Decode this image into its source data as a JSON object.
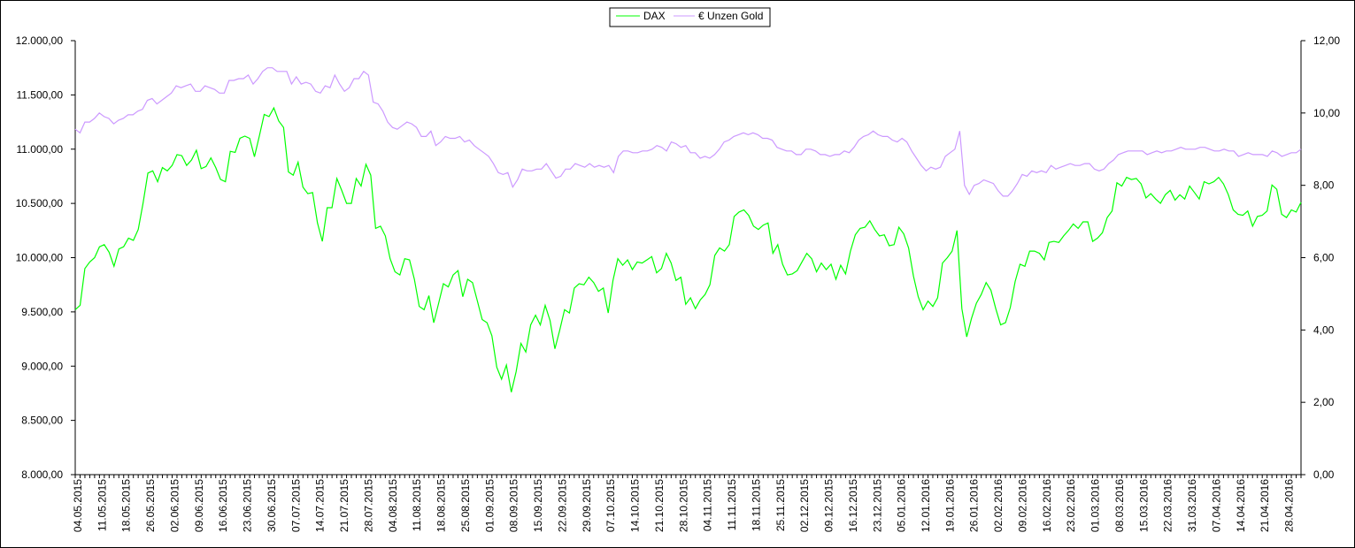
{
  "chart_data": {
    "type": "line",
    "title": "",
    "legend_position": "top-center",
    "grid": false,
    "x_tick_labels": [
      "04.05.2015",
      "11.05.2015",
      "18.05.2015",
      "26.05.2015",
      "02.06.2015",
      "09.06.2015",
      "16.06.2015",
      "23.06.2015",
      "30.06.2015",
      "07.07.2015",
      "14.07.2015",
      "21.07.2015",
      "28.07.2015",
      "04.08.2015",
      "11.08.2015",
      "18.08.2015",
      "25.08.2015",
      "01.09.2015",
      "08.09.2015",
      "15.09.2015",
      "22.09.2015",
      "29.09.2015",
      "07.10.2015",
      "14.10.2015",
      "21.10.2015",
      "28.10.2015",
      "04.11.2015",
      "11.11.2015",
      "18.11.2015",
      "25.11.2015",
      "02.12.2015",
      "09.12.2015",
      "16.12.2015",
      "23.12.2015",
      "05.01.2016",
      "12.01.2016",
      "19.01.2016",
      "26.01.2016",
      "02.02.2016",
      "09.02.2016",
      "16.02.2016",
      "23.02.2016",
      "01.03.2016",
      "08.03.2016",
      "15.03.2016",
      "22.03.2016",
      "31.03.2016",
      "07.04.2016",
      "14.04.2016",
      "21.04.2016",
      "28.04.2016"
    ],
    "y_left": {
      "ylim": [
        8000,
        12000
      ],
      "ticks": [
        "8.000,00",
        "8.500,00",
        "9.000,00",
        "9.500,00",
        "10.000,00",
        "10.500,00",
        "11.000,00",
        "11.500,00",
        "12.000,00"
      ]
    },
    "y_right": {
      "ylim": [
        0,
        12
      ],
      "ticks": [
        "0,00",
        "2,00",
        "4,00",
        "6,00",
        "8,00",
        "10,00",
        "12,00"
      ]
    },
    "series": [
      {
        "name": "DAX",
        "axis": "left",
        "color": "#00ff00",
        "values": [
          9520,
          9560,
          9900,
          9960,
          10000,
          10100,
          10120,
          10050,
          9920,
          10080,
          10100,
          10180,
          10160,
          10260,
          10500,
          10780,
          10800,
          10700,
          10830,
          10800,
          10850,
          10950,
          10940,
          10850,
          10900,
          10990,
          10820,
          10840,
          10920,
          10830,
          10720,
          10700,
          10980,
          10970,
          11100,
          11120,
          11100,
          10930,
          11120,
          11320,
          11300,
          11380,
          11260,
          11200,
          10790,
          10760,
          10880,
          10650,
          10590,
          10600,
          10320,
          10150,
          10460,
          10460,
          10730,
          10620,
          10500,
          10500,
          10730,
          10660,
          10860,
          10760,
          10270,
          10290,
          10200,
          9990,
          9870,
          9840,
          9990,
          9980,
          9800,
          9550,
          9520,
          9650,
          9400,
          9580,
          9760,
          9730,
          9840,
          9880,
          9640,
          9800,
          9770,
          9600,
          9430,
          9400,
          9280,
          8990,
          8880,
          9010,
          8760,
          8950,
          9210,
          9130,
          9380,
          9470,
          9380,
          9560,
          9420,
          9160,
          9330,
          9520,
          9490,
          9720,
          9760,
          9750,
          9820,
          9770,
          9690,
          9720,
          9490,
          9790,
          9990,
          9930,
          9980,
          9890,
          9960,
          9950,
          9980,
          10010,
          9860,
          9900,
          10040,
          9950,
          9790,
          9820,
          9570,
          9630,
          9530,
          9610,
          9660,
          9750,
          10020,
          10090,
          10060,
          10120,
          10380,
          10420,
          10440,
          10390,
          10290,
          10260,
          10300,
          10320,
          10040,
          10120,
          9940,
          9840,
          9850,
          9880,
          9960,
          10040,
          9990,
          9870,
          9950,
          9890,
          9940,
          9800,
          9930,
          9850,
          10060,
          10210,
          10270,
          10280,
          10340,
          10260,
          10200,
          10210,
          10110,
          10120,
          10280,
          10220,
          10090,
          9830,
          9640,
          9520,
          9600,
          9550,
          9630,
          9950,
          10000,
          10060,
          10250,
          9530,
          9270,
          9440,
          9580,
          9660,
          9770,
          9700,
          9530,
          9380,
          9400,
          9540,
          9780,
          9940,
          9920,
          10060,
          10060,
          10040,
          9980,
          10140,
          10150,
          10140,
          10200,
          10250,
          10310,
          10270,
          10330,
          10330,
          10150,
          10180,
          10230,
          10370,
          10430,
          10690,
          10660,
          10740,
          10720,
          10730,
          10680,
          10550,
          10590,
          10540,
          10500,
          10580,
          10620,
          10530,
          10580,
          10540,
          10660,
          10600,
          10540,
          10700,
          10680,
          10700,
          10740,
          10680,
          10580,
          10440,
          10400,
          10390,
          10430,
          10290,
          10380,
          10390,
          10430,
          10670,
          10630,
          10400,
          10370,
          10440,
          10420,
          10510
        ]
      },
      {
        "name": "€ Unzen Gold",
        "axis": "right",
        "color": "#cc99ff",
        "values": [
          9.55,
          9.45,
          9.75,
          9.75,
          9.85,
          10.0,
          9.9,
          9.85,
          9.7,
          9.8,
          9.85,
          9.95,
          9.95,
          10.05,
          10.1,
          10.35,
          10.4,
          10.25,
          10.35,
          10.45,
          10.55,
          10.75,
          10.7,
          10.75,
          10.8,
          10.6,
          10.6,
          10.75,
          10.7,
          10.65,
          10.55,
          10.55,
          10.9,
          10.9,
          10.95,
          10.95,
          11.05,
          10.8,
          10.95,
          11.15,
          11.25,
          11.25,
          11.15,
          11.15,
          11.15,
          10.8,
          11.0,
          10.8,
          10.85,
          10.8,
          10.6,
          10.55,
          10.75,
          10.7,
          11.05,
          10.8,
          10.6,
          10.7,
          10.95,
          10.95,
          11.15,
          11.05,
          10.3,
          10.25,
          10.05,
          9.75,
          9.6,
          9.55,
          9.65,
          9.75,
          9.7,
          9.6,
          9.35,
          9.35,
          9.5,
          9.1,
          9.2,
          9.35,
          9.3,
          9.3,
          9.35,
          9.2,
          9.25,
          9.1,
          9.0,
          8.9,
          8.8,
          8.6,
          8.35,
          8.3,
          8.35,
          7.95,
          8.15,
          8.45,
          8.4,
          8.4,
          8.45,
          8.45,
          8.6,
          8.4,
          8.2,
          8.25,
          8.45,
          8.45,
          8.6,
          8.55,
          8.5,
          8.6,
          8.5,
          8.55,
          8.5,
          8.55,
          8.35,
          8.8,
          8.95,
          8.95,
          8.9,
          8.9,
          8.95,
          8.95,
          9.0,
          9.1,
          9.05,
          8.95,
          9.2,
          9.15,
          9.05,
          9.1,
          8.9,
          8.9,
          8.75,
          8.8,
          8.75,
          8.85,
          9.0,
          9.2,
          9.25,
          9.35,
          9.4,
          9.45,
          9.4,
          9.45,
          9.4,
          9.3,
          9.3,
          9.25,
          9.05,
          9.0,
          8.95,
          8.95,
          8.85,
          8.85,
          9.0,
          9.0,
          8.95,
          8.85,
          8.85,
          8.8,
          8.85,
          8.85,
          8.95,
          8.9,
          9.05,
          9.25,
          9.35,
          9.4,
          9.5,
          9.4,
          9.35,
          9.35,
          9.25,
          9.2,
          9.3,
          9.2,
          8.95,
          8.75,
          8.55,
          8.4,
          8.5,
          8.45,
          8.5,
          8.8,
          8.9,
          9.0,
          9.5,
          8.0,
          7.75,
          8.0,
          8.05,
          8.15,
          8.1,
          8.05,
          7.85,
          7.7,
          7.7,
          7.85,
          8.05,
          8.3,
          8.25,
          8.4,
          8.35,
          8.4,
          8.35,
          8.55,
          8.45,
          8.5,
          8.55,
          8.6,
          8.55,
          8.55,
          8.6,
          8.6,
          8.45,
          8.4,
          8.45,
          8.6,
          8.7,
          8.85,
          8.9,
          8.95,
          8.95,
          8.95,
          8.95,
          8.85,
          8.9,
          8.95,
          8.9,
          8.95,
          8.95,
          9.0,
          9.05,
          9.0,
          9.0,
          9.0,
          9.05,
          9.05,
          9.0,
          8.95,
          8.95,
          9.0,
          8.95,
          8.95,
          8.8,
          8.85,
          8.9,
          8.85,
          8.85,
          8.85,
          8.8,
          8.95,
          8.9,
          8.8,
          8.85,
          8.9,
          8.9,
          9.0
        ]
      }
    ]
  }
}
